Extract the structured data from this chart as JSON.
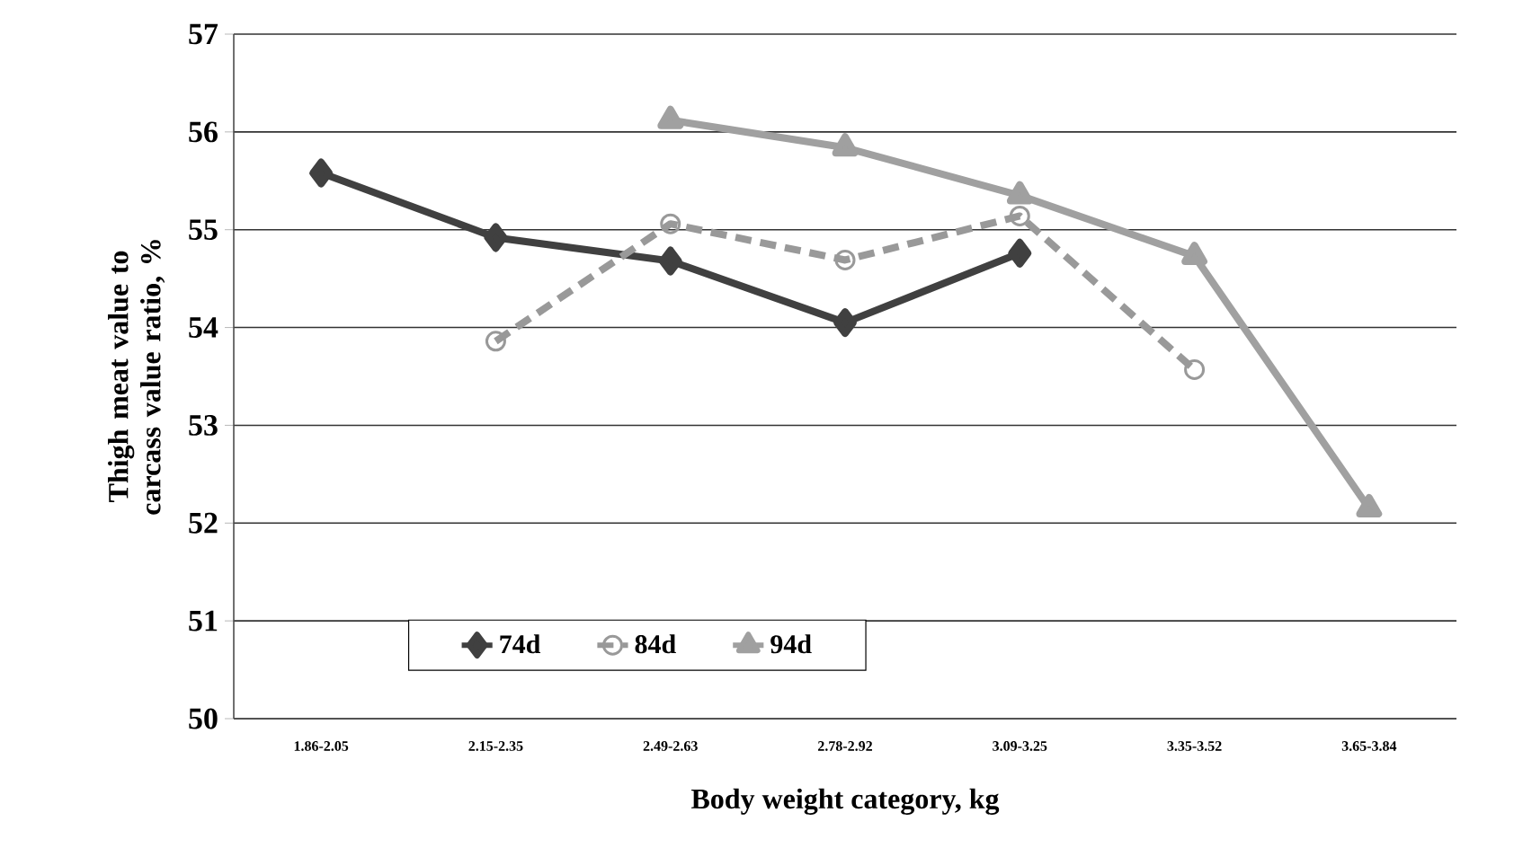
{
  "chart_data": {
    "type": "line",
    "xlabel": "Body weight category, kg",
    "ylabel": "Thigh meat value to carcass value ratio, %",
    "categories": [
      "1.86-2.05",
      "2.15-2.35",
      "2.49-2.63",
      "2.78-2.92",
      "3.09-3.25",
      "3.35-3.52",
      "3.65-3.84"
    ],
    "series": [
      {
        "name": "74d",
        "color": "#404040",
        "marker": "diamond",
        "line_style": "solid",
        "values": [
          55.58,
          54.92,
          54.68,
          54.05,
          54.76,
          null,
          null
        ]
      },
      {
        "name": "84d",
        "color": "#999999",
        "marker": "circle",
        "line_style": "dashed",
        "values": [
          null,
          53.86,
          55.06,
          54.69,
          55.14,
          53.57,
          null
        ]
      },
      {
        "name": "94d",
        "color": "#a0a0a0",
        "marker": "triangle",
        "line_style": "solid",
        "values": [
          null,
          null,
          56.12,
          55.84,
          55.35,
          54.73,
          52.15
        ]
      }
    ],
    "ylim": [
      50,
      57
    ],
    "yticks": [
      50,
      51,
      52,
      53,
      54,
      55,
      56,
      57
    ],
    "grid": "y",
    "legend": "bottom"
  }
}
